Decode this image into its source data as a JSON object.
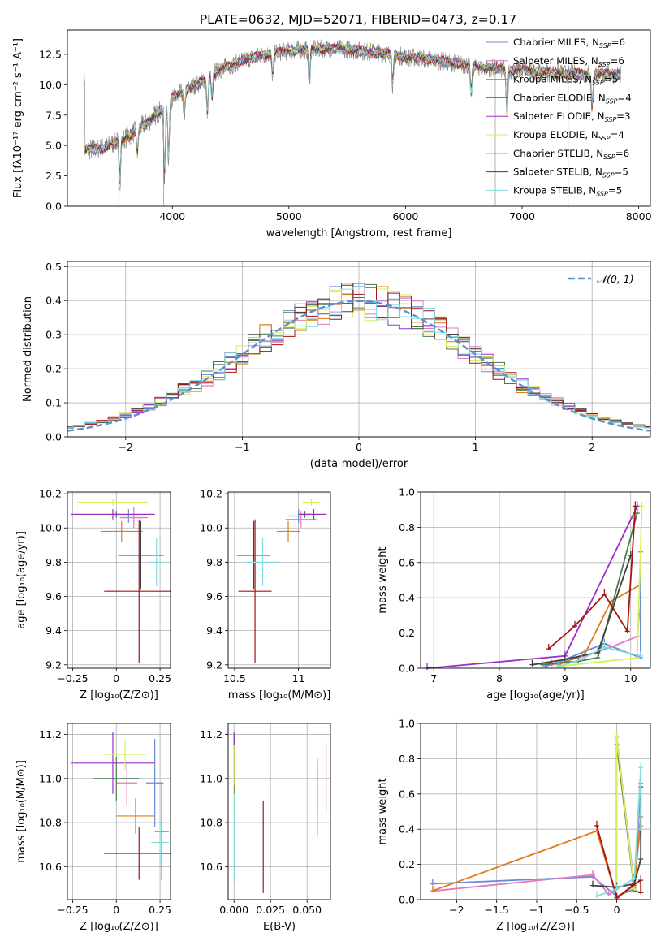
{
  "figure_title": "PLATE=0632, MJD=52071, FIBERID=0473, z=0.17",
  "colors": {
    "grid": "#b0b0b0",
    "chabrier_miles": "#6a8bd8",
    "salpeter_miles": "#e377c2",
    "kroupa_miles": "#e07b1a",
    "chabrier_elodie": "#4b7a4b",
    "salpeter_elodie": "#9b30c8",
    "kroupa_elodie": "#d4f05a",
    "chabrier_stelib": "#404040",
    "salpeter_stelib": "#a31515",
    "kroupa_stelib": "#7fdde0",
    "spectrum_data": "#808080"
  },
  "chart_data": [
    {
      "id": "spectrum",
      "type": "line",
      "title": "PLATE=0632, MJD=52071, FIBERID=0473, z=0.17",
      "xlabel": "wavelength [Angstrom, rest frame]",
      "ylabel": "Flux [fλ10⁻¹⁷ erg cm⁻² s⁻¹ A⁻¹]",
      "xlim": [
        3100,
        8100
      ],
      "ylim": [
        0,
        14.5
      ],
      "xticks": [
        4000,
        5000,
        6000,
        7000,
        8000
      ],
      "yticks": [
        0.0,
        2.5,
        5.0,
        7.5,
        10.0,
        12.5
      ],
      "grid": false,
      "legend_position": "top-right",
      "continuum_x": [
        3250,
        3400,
        3600,
        3800,
        4000,
        4200,
        4400,
        4600,
        4800,
        5000,
        5200,
        5400,
        5600,
        5800,
        6000,
        6200,
        6400,
        6600,
        6800,
        7000,
        7200,
        7400,
        7600,
        7850
      ],
      "continuum_y": [
        4.6,
        4.8,
        5.6,
        7.0,
        8.9,
        10.0,
        11.2,
        12.0,
        12.5,
        12.8,
        12.9,
        13.0,
        12.8,
        12.6,
        12.3,
        12.1,
        11.8,
        11.5,
        11.3,
        11.2,
        11.0,
        10.9,
        10.9,
        10.8
      ],
      "series": [
        {
          "name": "Chabrier MILES, N_SSP=6",
          "color": "#6a8bd8"
        },
        {
          "name": "Salpeter MILES, N_SSP=6",
          "color": "#e377c2"
        },
        {
          "name": "Kroupa MILES, N_SSP=5",
          "color": "#e07b1a"
        },
        {
          "name": "Chabrier ELODIE, N_SSP=4",
          "color": "#4b7a4b"
        },
        {
          "name": "Salpeter ELODIE, N_SSP=3",
          "color": "#9b30c8"
        },
        {
          "name": "Kroupa ELODIE, N_SSP=4",
          "color": "#d4f05a"
        },
        {
          "name": "Chabrier STELIB, N_SSP=6",
          "color": "#404040"
        },
        {
          "name": "Salpeter STELIB, N_SSP=5",
          "color": "#a31515"
        },
        {
          "name": "Kroupa STELIB, N_SSP=5",
          "color": "#7fdde0"
        }
      ]
    },
    {
      "id": "residuals",
      "type": "histogram",
      "xlabel": "(data-model)/error",
      "ylabel": "Normed distribution",
      "xlim": [
        -2.5,
        2.5
      ],
      "ylim": [
        0,
        0.515
      ],
      "xticks": [
        -2,
        -1,
        0,
        1,
        2
      ],
      "yticks": [
        0.0,
        0.1,
        0.2,
        0.3,
        0.4,
        0.5
      ],
      "grid": true,
      "legend": "𝒩(0, 1)",
      "legend_position": "top-right",
      "bin_width": 0.1
    },
    {
      "id": "z_age",
      "type": "errorbar",
      "xlabel": "Z [log₁₀(Z/Z⊙)]",
      "ylabel": "age  [log₁₀(age/yr)]",
      "xlim": [
        -0.28,
        0.31
      ],
      "ylim": [
        9.18,
        10.21
      ],
      "xticks": [
        -0.25,
        0.0,
        0.25
      ],
      "yticks": [
        9.2,
        9.4,
        9.6,
        9.8,
        10.0,
        10.2
      ],
      "grid": true,
      "points": [
        {
          "series": "Chabrier MILES",
          "x": 0.07,
          "xerr": 0.1,
          "y": 10.07,
          "yerr": 0.04
        },
        {
          "series": "Salpeter MILES",
          "x": 0.1,
          "xerr": 0.08,
          "y": 10.06,
          "yerr": 0.06
        },
        {
          "series": "Kroupa MILES",
          "x": 0.03,
          "xerr": 0.12,
          "y": 9.98,
          "yerr": 0.06
        },
        {
          "series": "Chabrier ELODIE",
          "x": 0.0,
          "xerr": 0.02,
          "y": 10.08,
          "yerr": 0.02
        },
        {
          "series": "Salpeter ELODIE",
          "x": -0.02,
          "xerr": 0.24,
          "y": 10.08,
          "yerr": 0.03
        },
        {
          "series": "Kroupa ELODIE",
          "x": -0.02,
          "xerr": 0.2,
          "y": 10.15,
          "yerr": 0.02
        },
        {
          "series": "Chabrier STELIB",
          "x": 0.14,
          "xerr": 0.13,
          "y": 9.84,
          "yerr": 0.2
        },
        {
          "series": "Salpeter STELIB",
          "x": 0.13,
          "xerr": 0.2,
          "y": 9.63,
          "yerr": 0.42
        },
        {
          "series": "Kroupa STELIB",
          "x": 0.23,
          "xerr": 0.04,
          "y": 9.8,
          "yerr": 0.14
        }
      ]
    },
    {
      "id": "mass_age",
      "type": "errorbar",
      "xlabel": "mass [log₁₀(M/M⊙)]",
      "ylabel": "",
      "xlim": [
        10.45,
        11.25
      ],
      "ylim": [
        9.18,
        10.21
      ],
      "xticks": [
        10.5,
        11.0
      ],
      "yticks": [
        9.2,
        9.4,
        9.6,
        9.8,
        10.0,
        10.2
      ],
      "grid": true,
      "points": [
        {
          "series": "Chabrier MILES",
          "x": 11.0,
          "xerr": 0.08,
          "y": 10.07,
          "yerr": 0.04
        },
        {
          "series": "Salpeter MILES",
          "x": 11.02,
          "xerr": 0.12,
          "y": 10.05,
          "yerr": 0.05
        },
        {
          "series": "Kroupa MILES",
          "x": 10.92,
          "xerr": 0.09,
          "y": 9.98,
          "yerr": 0.06
        },
        {
          "series": "Chabrier ELODIE",
          "x": 11.05,
          "xerr": 0.05,
          "y": 10.08,
          "yerr": 0.02
        },
        {
          "series": "Salpeter ELODIE",
          "x": 11.12,
          "xerr": 0.1,
          "y": 10.08,
          "yerr": 0.03
        },
        {
          "series": "Kroupa ELODIE",
          "x": 11.1,
          "xerr": 0.07,
          "y": 10.15,
          "yerr": 0.02
        },
        {
          "series": "Chabrier STELIB",
          "x": 10.65,
          "xerr": 0.13,
          "y": 9.84,
          "yerr": 0.2
        },
        {
          "series": "Salpeter STELIB",
          "x": 10.66,
          "xerr": 0.13,
          "y": 9.63,
          "yerr": 0.42
        },
        {
          "series": "Kroupa STELIB",
          "x": 10.72,
          "xerr": 0.13,
          "y": 9.8,
          "yerr": 0.14
        }
      ]
    },
    {
      "id": "age_weight",
      "type": "line",
      "xlabel": "age  [log₁₀(age/yr)]",
      "ylabel": "mass weight",
      "xlim": [
        6.8,
        10.3
      ],
      "ylim": [
        0,
        1
      ],
      "xticks": [
        7,
        8,
        9,
        10
      ],
      "yticks": [
        0.0,
        0.2,
        0.4,
        0.6,
        0.8,
        1.0
      ],
      "grid": true,
      "series": [
        {
          "name": "Chabrier MILES",
          "x": [
            8.7,
            9.0,
            9.6,
            10.15,
            10.15
          ],
          "y": [
            0.01,
            0.05,
            0.14,
            0.06,
            0.66
          ]
        },
        {
          "name": "Salpeter MILES",
          "x": [
            8.8,
            9.3,
            9.7,
            10.1,
            10.13
          ],
          "y": [
            0.02,
            0.07,
            0.12,
            0.18,
            0.31
          ]
        },
        {
          "name": "Kroupa MILES",
          "x": [
            8.9,
            9.3,
            9.7,
            10.13
          ],
          "y": [
            0.02,
            0.08,
            0.38,
            0.47
          ]
        },
        {
          "name": "Chabrier ELODIE",
          "x": [
            8.65,
            9.2,
            9.5,
            10.1
          ],
          "y": [
            0.02,
            0.04,
            0.06,
            0.88
          ]
        },
        {
          "name": "Salpeter ELODIE",
          "x": [
            6.9,
            9.0,
            10.1
          ],
          "y": [
            0.0,
            0.07,
            0.92
          ]
        },
        {
          "name": "Kroupa ELODIE",
          "x": [
            8.9,
            10.1,
            10.17
          ],
          "y": [
            0.01,
            0.06,
            0.92
          ]
        },
        {
          "name": "Chabrier STELIB",
          "x": [
            8.5,
            9.0,
            9.5,
            10.0
          ],
          "y": [
            0.02,
            0.05,
            0.09,
            0.64
          ]
        },
        {
          "name": "Salpeter STELIB",
          "x": [
            8.75,
            9.15,
            9.6,
            9.95,
            10.07
          ],
          "y": [
            0.11,
            0.24,
            0.42,
            0.21,
            0.92
          ]
        },
        {
          "name": "Kroupa STELIB",
          "x": [
            8.9,
            9.25,
            9.6,
            10.15
          ],
          "y": [
            0.01,
            0.05,
            0.12,
            0.07
          ]
        }
      ]
    },
    {
      "id": "z_mass",
      "type": "errorbar",
      "xlabel": "Z [log₁₀(Z/Z⊙)]",
      "ylabel": "mass [log₁₀(M/M⊙)]",
      "xlim": [
        -0.28,
        0.31
      ],
      "ylim": [
        10.45,
        11.25
      ],
      "xticks": [
        -0.25,
        0.0,
        0.25
      ],
      "yticks": [
        10.6,
        10.8,
        11.0,
        11.2
      ],
      "grid": true,
      "points": [
        {
          "series": "Chabrier MILES",
          "x": 0.22,
          "xerr": 0.05,
          "y": 10.98,
          "yerr": 0.2
        },
        {
          "series": "Salpeter MILES",
          "x": 0.06,
          "xerr": 0.06,
          "y": 10.98,
          "yerr": 0.1
        },
        {
          "series": "Kroupa MILES",
          "x": 0.11,
          "xerr": 0.11,
          "y": 10.83,
          "yerr": 0.08
        },
        {
          "series": "Chabrier ELODIE",
          "x": 0.0,
          "xerr": 0.13,
          "y": 11.0,
          "yerr": 0.1
        },
        {
          "series": "Salpeter ELODIE",
          "x": -0.02,
          "xerr": 0.24,
          "y": 11.07,
          "yerr": 0.14
        },
        {
          "series": "Kroupa ELODIE",
          "x": 0.05,
          "xerr": 0.12,
          "y": 11.11,
          "yerr": 0.07
        },
        {
          "series": "Chabrier STELIB",
          "x": 0.26,
          "xerr": 0.04,
          "y": 10.76,
          "yerr": 0.22
        },
        {
          "series": "Salpeter STELIB",
          "x": 0.13,
          "xerr": 0.2,
          "y": 10.66,
          "yerr": 0.12
        },
        {
          "series": "Kroupa STELIB",
          "x": 0.25,
          "xerr": 0.05,
          "y": 10.71,
          "yerr": 0.1
        }
      ]
    },
    {
      "id": "ebv_mass",
      "type": "errorbar",
      "xlabel": "E(B-V)",
      "ylabel": "",
      "xlim": [
        -0.004,
        0.066
      ],
      "ylim": [
        10.45,
        11.25
      ],
      "xticks": [
        0.0,
        0.025,
        0.05
      ],
      "xticklabels": [
        "0.000",
        "0.025",
        "0.050"
      ],
      "yticks": [
        10.6,
        10.8,
        11.0,
        11.2
      ],
      "grid": true,
      "points": [
        {
          "series": "Chabrier MILES",
          "x": 0.057,
          "y": 10.96,
          "yerr": 0.13
        },
        {
          "series": "Salpeter MILES",
          "x": 0.063,
          "y": 11.0,
          "yerr": 0.16
        },
        {
          "series": "Kroupa MILES",
          "x": 0.057,
          "y": 10.9,
          "yerr": 0.16
        },
        {
          "series": "Chabrier ELODIE",
          "x": 0.0005,
          "y": 11.0,
          "yerr": 0.2
        },
        {
          "series": "Salpeter ELODIE",
          "x": 0.0,
          "y": 11.07,
          "yerr": 0.14
        },
        {
          "series": "Kroupa ELODIE",
          "x": 0.0,
          "y": 11.0,
          "yerr": 0.15
        },
        {
          "series": "Chabrier STELIB",
          "x": 0.0005,
          "y": 10.75,
          "yerr": 0.22
        },
        {
          "series": "Salpeter STELIB",
          "x": 0.02,
          "y": 10.69,
          "yerr": 0.21
        },
        {
          "series": "Kroupa STELIB",
          "x": 0.0003,
          "y": 10.73,
          "yerr": 0.2
        }
      ]
    },
    {
      "id": "z_weight",
      "type": "line",
      "xlabel": "Z [log₁₀(Z/Z⊙)]",
      "ylabel": "mass weight",
      "xlim": [
        -2.45,
        0.42
      ],
      "ylim": [
        0,
        1
      ],
      "xticks": [
        -2.0,
        -1.5,
        -1.0,
        -0.5,
        0.0
      ],
      "yticks": [
        0.0,
        0.2,
        0.4,
        0.6,
        0.8,
        1.0
      ],
      "grid": true,
      "series": [
        {
          "name": "Chabrier MILES",
          "x": [
            -2.3,
            -0.3,
            0.0,
            0.22,
            0.3
          ],
          "y": [
            0.09,
            0.13,
            0.02,
            0.06,
            0.66
          ]
        },
        {
          "name": "Salpeter MILES",
          "x": [
            -2.28,
            -0.3,
            -0.1,
            0.22,
            0.3
          ],
          "y": [
            0.05,
            0.14,
            0.03,
            0.12,
            0.42
          ]
        },
        {
          "name": "Kroupa MILES",
          "x": [
            -2.3,
            -0.25,
            0.0,
            0.22,
            0.3
          ],
          "y": [
            0.05,
            0.39,
            0.01,
            0.08,
            0.47
          ]
        },
        {
          "name": "Chabrier ELODIE",
          "x": [
            0.0,
            0.0,
            0.22,
            0.3
          ],
          "y": [
            0.02,
            0.88,
            0.05,
            0.04
          ]
        },
        {
          "name": "Salpeter ELODIE",
          "x": [
            0.0,
            0.0,
            0.22
          ],
          "y": [
            0.01,
            0.92,
            0.07
          ]
        },
        {
          "name": "Kroupa ELODIE",
          "x": [
            0.0,
            0.0,
            0.22
          ],
          "y": [
            0.01,
            0.92,
            0.06
          ]
        },
        {
          "name": "Chabrier STELIB",
          "x": [
            -0.3,
            0.0,
            0.22,
            0.3,
            0.3
          ],
          "y": [
            0.08,
            0.07,
            0.09,
            0.23,
            0.64
          ]
        },
        {
          "name": "Salpeter STELIB",
          "x": [
            -0.25,
            0.0,
            0.2,
            0.3,
            0.3
          ],
          "y": [
            0.42,
            0.01,
            0.08,
            0.11,
            0.04
          ]
        },
        {
          "name": "Kroupa STELIB",
          "x": [
            -0.25,
            0.0,
            0.22,
            0.3,
            0.3
          ],
          "y": [
            0.02,
            0.06,
            0.12,
            0.75,
            0.4
          ]
        }
      ]
    }
  ]
}
